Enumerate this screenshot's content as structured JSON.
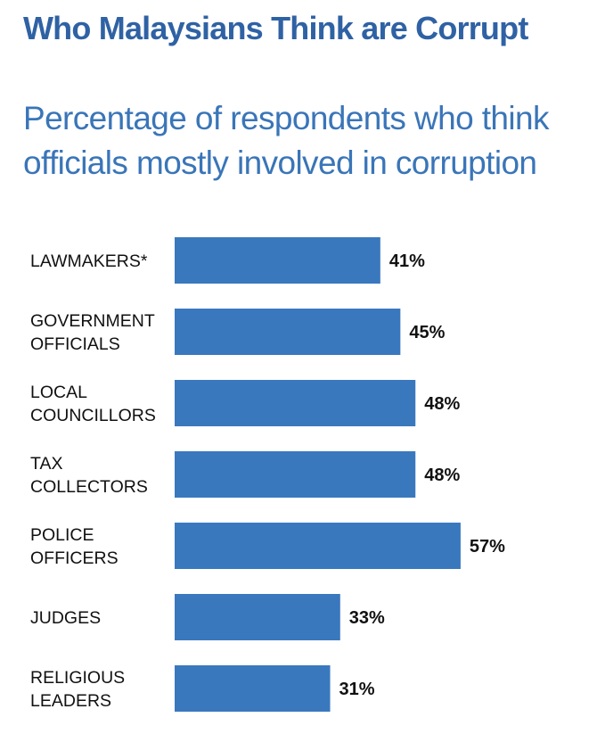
{
  "title": "Who Malaysians Think are Corrupt",
  "subtitle": "Percentage of respondents who think officials mostly involved in corruption",
  "chart_data": {
    "type": "bar",
    "orientation": "horizontal",
    "title": "Who Malaysians Think are Corrupt",
    "subtitle": "Percentage of respondents who think officials mostly involved in corruption",
    "categories": [
      "LAWMAKERS*",
      "GOVERNMENT OFFICIALS",
      "LOCAL COUNCILLORS",
      "TAX COLLECTORS",
      "POLICE OFFICERS",
      "JUDGES",
      "RELIGIOUS LEADERS"
    ],
    "category_lines": [
      [
        "LAWMAKERS*"
      ],
      [
        "GOVERNMENT",
        "OFFICIALS"
      ],
      [
        "LOCAL",
        "COUNCILLORS"
      ],
      [
        "TAX",
        "COLLECTORS"
      ],
      [
        "POLICE",
        "OFFICERS"
      ],
      [
        "JUDGES"
      ],
      [
        "RELIGIOUS",
        "LEADERS"
      ]
    ],
    "values": [
      41,
      45,
      48,
      48,
      57,
      33,
      31
    ],
    "value_labels": [
      "41%",
      "45%",
      "48%",
      "48%",
      "57%",
      "33%",
      "31%"
    ],
    "unit": "%",
    "bar_color": "#3a78be",
    "grid": false,
    "legend": "none"
  }
}
